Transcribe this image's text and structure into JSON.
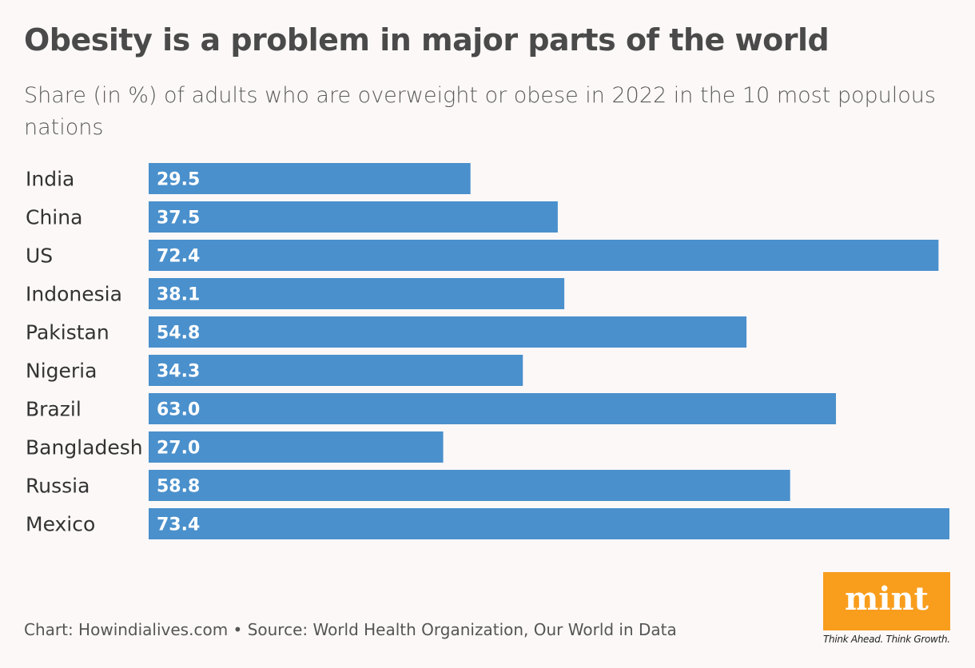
{
  "chart_data": {
    "type": "bar",
    "orientation": "horizontal",
    "title": "Obesity is a problem in major parts of the world",
    "subtitle": "Share (in %) of adults who are overweight or obese in 2022 in the 10 most populous nations",
    "categories": [
      "India",
      "China",
      "US",
      "Indonesia",
      "Pakistan",
      "Nigeria",
      "Brazil",
      "Bangladesh",
      "Russia",
      "Mexico"
    ],
    "values": [
      29.5,
      37.5,
      72.4,
      38.1,
      54.8,
      34.3,
      63.0,
      27.0,
      58.8,
      73.4
    ],
    "data_labels": [
      "29.5",
      "37.5",
      "72.4",
      "38.1",
      "54.8",
      "34.3",
      "63.0",
      "27.0",
      "58.8",
      "73.4"
    ],
    "xlim": [
      0,
      73.4
    ],
    "grid": false,
    "bar_color": "#4a90cc"
  },
  "footer": {
    "source": "Chart: Howindialives.com • Source: World Health Organization, Our World in Data"
  },
  "logo": {
    "text": "mint",
    "tagline": "Think Ahead. Think Growth.",
    "color": "#f99d1c"
  }
}
